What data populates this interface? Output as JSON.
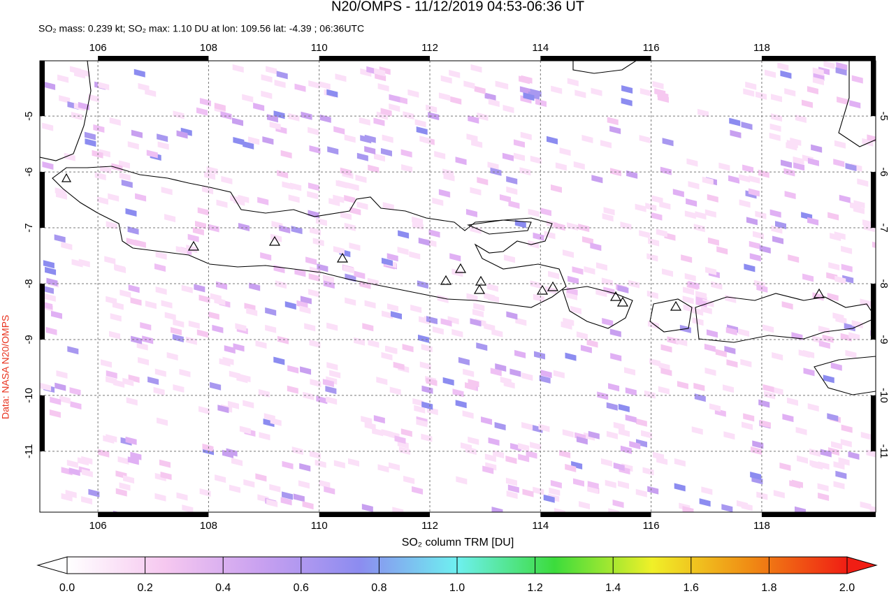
{
  "chart_data": {
    "type": "map",
    "title": "N20/OMPS - 11/12/2019 04:53-06:36 UT",
    "subtitle": "SO₂ mass: 0.239 kt; SO₂ max: 1.10 DU at lon: 109.56 lat: -4.39 ; 06:36UTC",
    "credit": "Data: NASA N20/OMPS",
    "xlim": [
      104.95,
      120.06
    ],
    "ylim": [
      -12.09,
      -4.01
    ],
    "xticks": [
      106,
      108,
      110,
      112,
      114,
      116,
      118
    ],
    "yticks": [
      -5,
      -6,
      -7,
      -8,
      -9,
      -10,
      -11
    ],
    "grid": true,
    "colorbar": {
      "label": "SO₂ column TRM [DU]",
      "lim": [
        0,
        2
      ],
      "colors": [
        "#ffffff",
        "#f6c8f0",
        "#c8a0f0",
        "#8c8cf0",
        "#6ef0f0",
        "#3cdc3c",
        "#f0f028",
        "#f08c14",
        "#f01e14"
      ],
      "ticks": [
        {
          "value": 0,
          "label": "0.0"
        },
        {
          "value": 0.2,
          "label": "0.2"
        },
        {
          "value": 0.4,
          "label": "0.4"
        },
        {
          "value": 0.6,
          "label": "0.6"
        },
        {
          "value": 0.8,
          "label": "0.8"
        },
        {
          "value": 1,
          "label": "1.0"
        },
        {
          "value": 1.2,
          "label": "1.2"
        },
        {
          "value": 1.4,
          "label": "1.4"
        },
        {
          "value": 1.6,
          "label": "1.6"
        },
        {
          "value": 1.8,
          "label": "1.8"
        },
        {
          "value": 2,
          "label": "2.0"
        }
      ]
    }
  }
}
